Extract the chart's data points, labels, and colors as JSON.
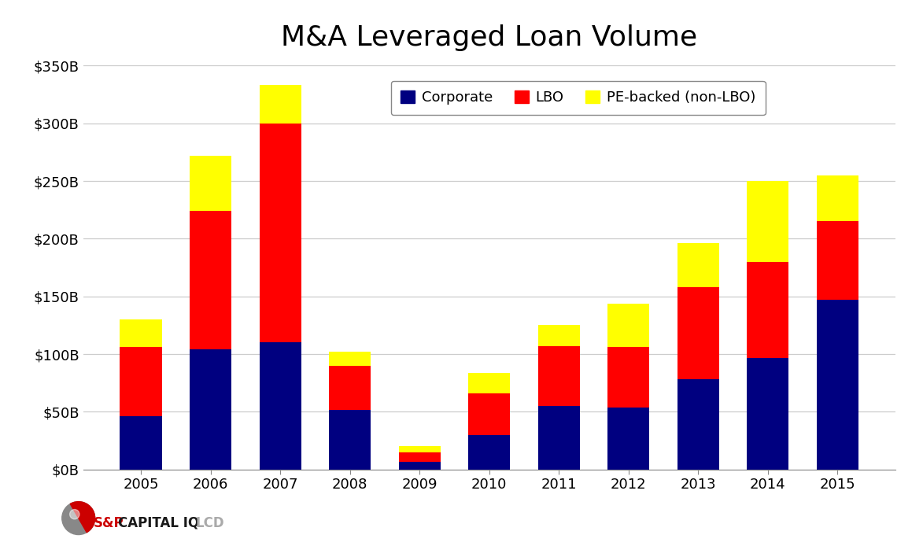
{
  "title": "M&A Leveraged Loan Volume",
  "years": [
    "2005",
    "2006",
    "2007",
    "2008",
    "2009",
    "2010",
    "2011",
    "2012",
    "2013",
    "2014",
    "2015"
  ],
  "corporate": [
    46,
    104,
    110,
    52,
    7,
    30,
    55,
    54,
    78,
    97,
    147
  ],
  "lbo": [
    60,
    120,
    190,
    38,
    8,
    36,
    52,
    52,
    80,
    83,
    68
  ],
  "pe_backed": [
    24,
    48,
    33,
    12,
    5,
    18,
    18,
    38,
    38,
    70,
    40
  ],
  "color_corporate": "#000080",
  "color_lbo": "#FF0000",
  "color_pe": "#FFFF00",
  "ylim": [
    0,
    350
  ],
  "yticks": [
    0,
    50,
    100,
    150,
    200,
    250,
    300,
    350
  ],
  "ytick_labels": [
    "$0B",
    "$50B",
    "$100B",
    "$150B",
    "$200B",
    "$250B",
    "$300B",
    "$350B"
  ],
  "legend_labels": [
    "Corporate",
    "LBO",
    "PE-backed (non-LBO)"
  ],
  "background_color": "#FFFFFF",
  "title_fontsize": 26,
  "tick_fontsize": 13,
  "legend_fontsize": 13,
  "bar_width": 0.6,
  "grid_color": "#CCCCCC",
  "sp_red": "#CC0000",
  "lcd_gray": "#AAAAAA",
  "capital_iq_dark": "#1a1a1a"
}
